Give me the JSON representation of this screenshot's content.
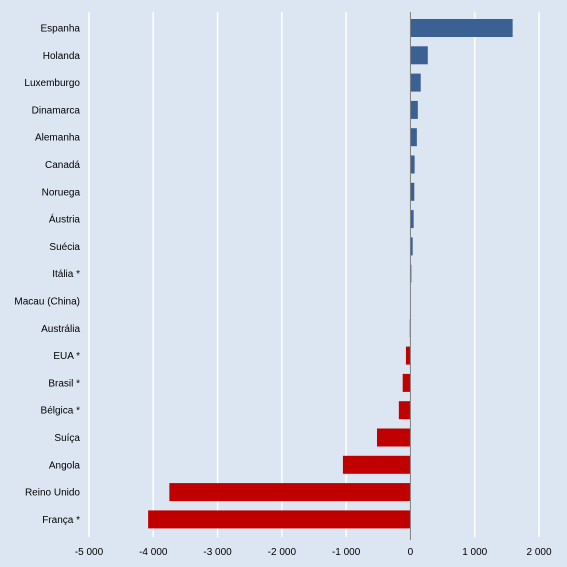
{
  "chart_data": {
    "type": "bar",
    "orientation": "horizontal",
    "title": "",
    "xlabel": "",
    "ylabel": "",
    "xlim": [
      -5000,
      2000
    ],
    "grid": true,
    "legend": "none",
    "categories": [
      "Espanha",
      "Holanda",
      "Luxemburgo",
      "Dinamarca",
      "Alemanha",
      "Canadá",
      "Noruega",
      "Áustria",
      "Suécia",
      "Itália *",
      "Macau (China)",
      "Austrália",
      "EUA *",
      "Brasil *",
      "Bélgica *",
      "Suíça",
      "Angola",
      "Reino Unido",
      "França *"
    ],
    "values": [
      1590,
      270,
      160,
      115,
      100,
      65,
      60,
      50,
      35,
      15,
      0,
      -10,
      -70,
      -120,
      -180,
      -520,
      -1050,
      -3750,
      -4080
    ],
    "x_ticks": [
      -5000,
      -4000,
      -3000,
      -2000,
      -1000,
      0,
      1000,
      2000
    ],
    "x_tick_labels": [
      "-5 000",
      "-4 000",
      "-3 000",
      "-2 000",
      "-1 000",
      "0",
      "1 000",
      "2 000"
    ],
    "colors": {
      "positive": "#3a6094",
      "negative": "#c00000",
      "grid": "#ffffff",
      "background": "#dce6f2",
      "axis": "#808080"
    }
  }
}
